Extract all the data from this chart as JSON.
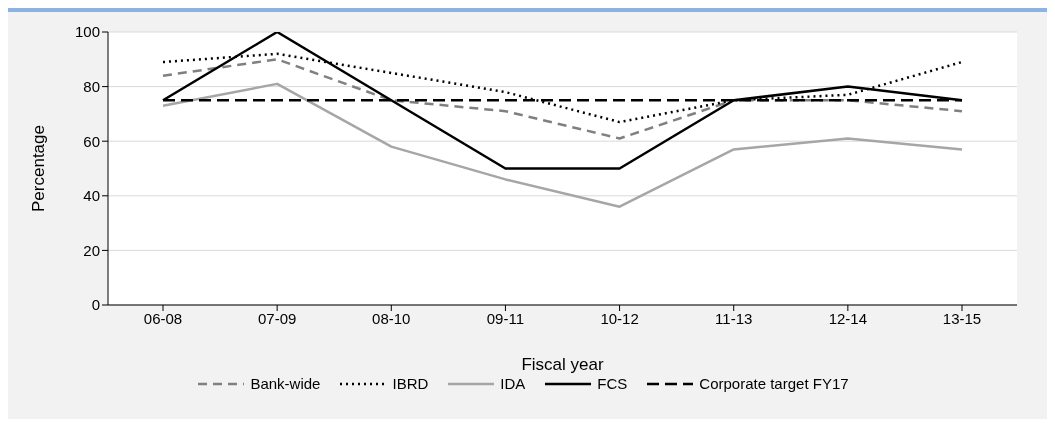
{
  "chart_data": {
    "type": "line",
    "xlabel": "Fiscal year",
    "ylabel": "Percentage",
    "categories": [
      "06-08",
      "07-09",
      "08-10",
      "09-11",
      "10-12",
      "11-13",
      "12-14",
      "13-15"
    ],
    "series": [
      {
        "name": "Bank-wide",
        "color": "#808080",
        "line_style": "dashed",
        "values": [
          84,
          90,
          75,
          71,
          61,
          75,
          75,
          71
        ]
      },
      {
        "name": "IBRD",
        "color": "#000000",
        "line_style": "dotted",
        "values": [
          89,
          92,
          85,
          78,
          67,
          75,
          77,
          89
        ]
      },
      {
        "name": "IDA",
        "color": "#a6a6a6",
        "line_style": "solid",
        "values": [
          73,
          81,
          58,
          46,
          36,
          57,
          61,
          57
        ]
      },
      {
        "name": "FCS",
        "color": "#000000",
        "line_style": "solid",
        "values": [
          75,
          100,
          75,
          50,
          50,
          75,
          80,
          75
        ]
      },
      {
        "name": "Corporate target FY17",
        "color": "#000000",
        "line_style": "dashed",
        "values": [
          75,
          75,
          75,
          75,
          75,
          75,
          75,
          75
        ]
      }
    ],
    "ylim": [
      0,
      100
    ],
    "yticks": [
      0,
      20,
      40,
      60,
      80,
      100
    ],
    "grid": "y",
    "legend": "bottom",
    "marker": "none"
  }
}
